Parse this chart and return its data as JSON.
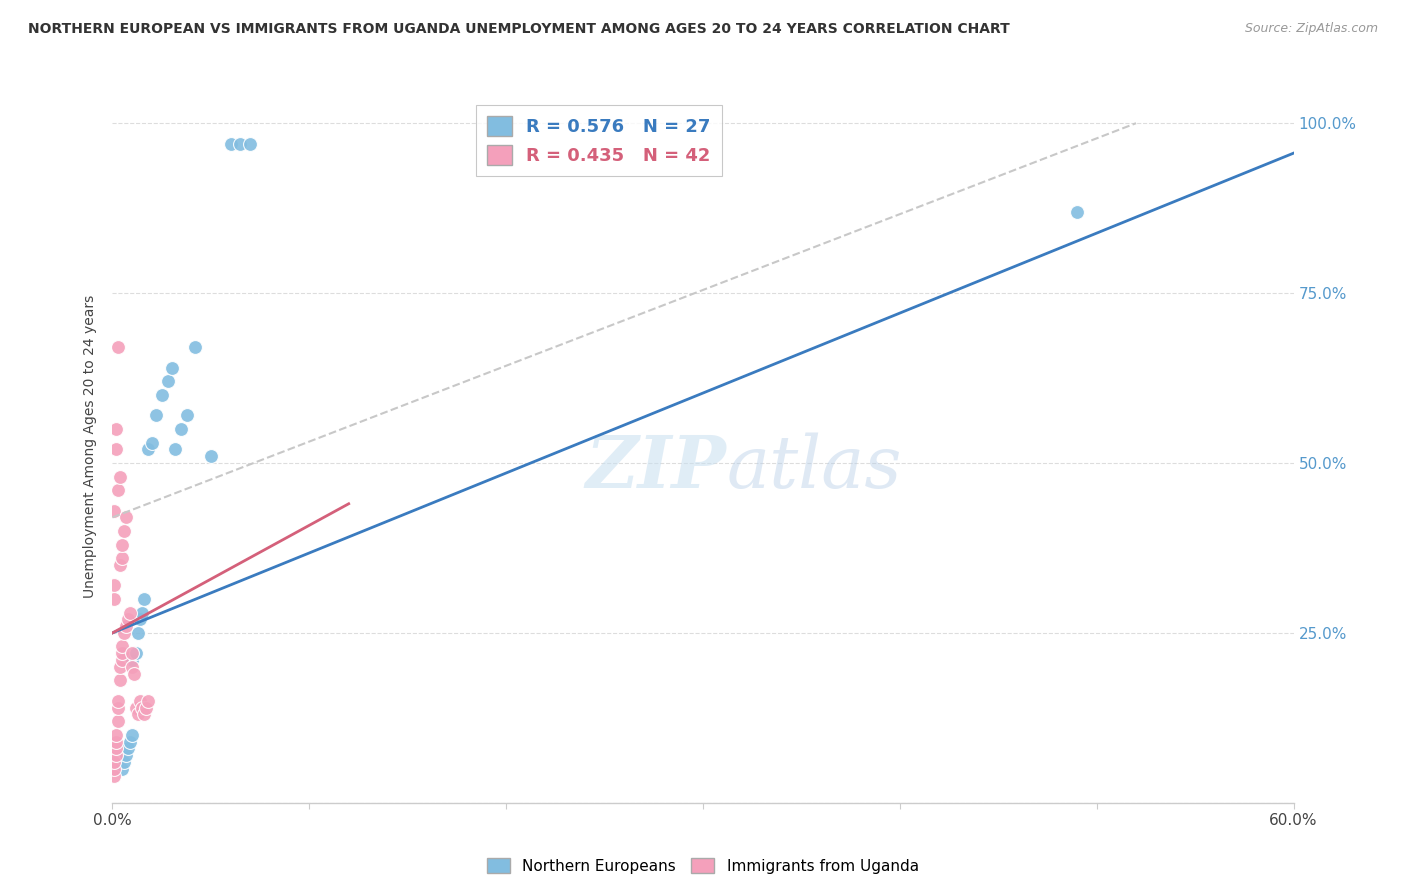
{
  "title": "NORTHERN EUROPEAN VS IMMIGRANTS FROM UGANDA UNEMPLOYMENT AMONG AGES 20 TO 24 YEARS CORRELATION CHART",
  "source": "Source: ZipAtlas.com",
  "ylabel": "Unemployment Among Ages 20 to 24 years",
  "xlim": [
    0.0,
    0.6
  ],
  "ylim": [
    0.0,
    1.05
  ],
  "x_tick_positions": [
    0.0,
    0.1,
    0.2,
    0.3,
    0.4,
    0.5,
    0.6
  ],
  "x_tick_labels": [
    "0.0%",
    "",
    "",
    "",
    "",
    "",
    "60.0%"
  ],
  "y_tick_positions": [
    0.0,
    0.25,
    0.5,
    0.75,
    1.0
  ],
  "blue_R": 0.576,
  "blue_N": 27,
  "pink_R": 0.435,
  "pink_N": 42,
  "blue_color": "#82bde0",
  "pink_color": "#f4a0bb",
  "blue_line_color": "#3a7bbf",
  "pink_line_color": "#d4607a",
  "dashed_line_color": "#c8c8c8",
  "right_axis_color": "#5599cc",
  "watermark_zip": "ZIP",
  "watermark_atlas": "atlas",
  "blue_scatter_x": [
    0.005,
    0.006,
    0.007,
    0.008,
    0.009,
    0.01,
    0.01,
    0.012,
    0.013,
    0.014,
    0.015,
    0.016,
    0.018,
    0.02,
    0.022,
    0.025,
    0.028,
    0.03,
    0.032,
    0.035,
    0.038,
    0.042,
    0.05,
    0.06,
    0.065,
    0.07,
    0.49
  ],
  "blue_scatter_y": [
    0.05,
    0.06,
    0.07,
    0.08,
    0.09,
    0.1,
    0.21,
    0.22,
    0.25,
    0.27,
    0.28,
    0.3,
    0.52,
    0.53,
    0.57,
    0.6,
    0.62,
    0.64,
    0.52,
    0.55,
    0.57,
    0.67,
    0.51,
    0.97,
    0.97,
    0.97,
    0.87
  ],
  "pink_scatter_x": [
    0.001,
    0.001,
    0.001,
    0.002,
    0.002,
    0.002,
    0.002,
    0.003,
    0.003,
    0.003,
    0.004,
    0.004,
    0.005,
    0.005,
    0.005,
    0.006,
    0.007,
    0.008,
    0.009,
    0.01,
    0.01,
    0.011,
    0.012,
    0.013,
    0.014,
    0.015,
    0.016,
    0.017,
    0.018,
    0.001,
    0.001,
    0.001,
    0.002,
    0.002,
    0.003,
    0.003,
    0.004,
    0.004,
    0.005,
    0.005,
    0.006,
    0.007
  ],
  "pink_scatter_y": [
    0.04,
    0.05,
    0.06,
    0.07,
    0.08,
    0.09,
    0.1,
    0.12,
    0.14,
    0.15,
    0.18,
    0.2,
    0.21,
    0.22,
    0.23,
    0.25,
    0.26,
    0.27,
    0.28,
    0.2,
    0.22,
    0.19,
    0.14,
    0.13,
    0.15,
    0.14,
    0.13,
    0.14,
    0.15,
    0.3,
    0.32,
    0.43,
    0.52,
    0.55,
    0.67,
    0.46,
    0.48,
    0.35,
    0.36,
    0.38,
    0.4,
    0.42
  ],
  "blue_line_x": [
    0.0,
    0.68
  ],
  "blue_line_y": [
    0.25,
    1.05
  ],
  "dashed_line_x": [
    0.0,
    0.52
  ],
  "dashed_line_y": [
    0.42,
    1.0
  ],
  "pink_line_x": [
    0.0,
    0.12
  ],
  "pink_line_y": [
    0.25,
    0.44
  ],
  "background_color": "#ffffff",
  "grid_color": "#dddddd"
}
